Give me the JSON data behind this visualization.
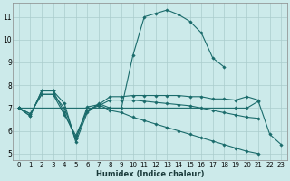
{
  "xlabel": "Humidex (Indice chaleur)",
  "ylabel": "",
  "bg_color": "#cceaea",
  "grid_color": "#aacccc",
  "line_color": "#1a6b6b",
  "x_ticks": [
    0,
    1,
    2,
    3,
    4,
    5,
    6,
    7,
    8,
    9,
    10,
    11,
    12,
    13,
    14,
    15,
    16,
    17,
    18,
    19,
    20,
    21,
    22,
    23
  ],
  "y_ticks": [
    5,
    6,
    7,
    8,
    9,
    10,
    11
  ],
  "xlim": [
    -0.5,
    23.5
  ],
  "ylim": [
    4.7,
    11.6
  ],
  "series": [
    [
      7.0,
      6.65,
      7.75,
      7.75,
      7.2,
      5.5,
      6.8,
      7.2,
      7.0,
      7.0,
      9.3,
      11.0,
      11.15,
      11.3,
      11.1,
      10.8,
      10.3,
      9.2,
      8.8,
      null,
      null,
      null,
      null,
      null
    ],
    [
      7.0,
      null,
      null,
      null,
      null,
      null,
      null,
      null,
      null,
      null,
      null,
      null,
      null,
      null,
      null,
      null,
      null,
      null,
      null,
      7.0,
      7.0,
      7.3,
      5.85,
      5.4
    ],
    [
      7.0,
      6.65,
      7.75,
      7.75,
      6.8,
      5.65,
      7.05,
      7.15,
      7.5,
      7.5,
      7.55,
      7.55,
      7.55,
      7.55,
      7.55,
      7.5,
      7.5,
      7.4,
      7.4,
      7.35,
      7.5,
      7.35,
      null,
      null
    ],
    [
      7.0,
      6.75,
      7.6,
      7.6,
      6.7,
      5.8,
      6.9,
      7.1,
      7.35,
      7.35,
      7.35,
      7.3,
      7.25,
      7.2,
      7.15,
      7.1,
      7.0,
      6.9,
      6.8,
      6.7,
      6.6,
      6.55,
      null,
      null
    ],
    [
      7.0,
      6.75,
      7.6,
      7.6,
      7.0,
      5.65,
      6.9,
      7.15,
      6.9,
      6.8,
      6.6,
      6.45,
      6.3,
      6.15,
      6.0,
      5.85,
      5.7,
      5.55,
      5.4,
      5.25,
      5.1,
      5.0,
      null,
      null
    ]
  ]
}
